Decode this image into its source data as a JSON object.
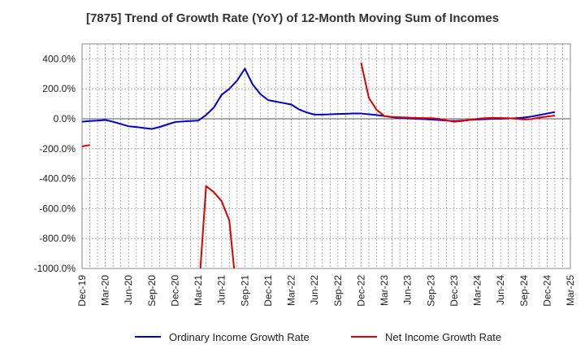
{
  "chart_data": {
    "type": "line",
    "title": "[7875]  Trend of Growth Rate (YoY) of 12-Month Moving Sum of Incomes",
    "xlabel": "",
    "ylabel": "",
    "ylim": [
      -1000,
      500
    ],
    "y_ticks": [
      400,
      200,
      0,
      -200,
      -400,
      -600,
      -800,
      -1000
    ],
    "y_tick_labels": [
      "400.0%",
      "200.0%",
      "0.0%",
      "-200.0%",
      "-400.0%",
      "-600.0%",
      "-800.0%",
      "-1000.0%"
    ],
    "x_tick_labels": [
      "Dec-19",
      "Mar-20",
      "Jun-20",
      "Sep-20",
      "Dec-20",
      "Mar-21",
      "Jun-21",
      "Sep-21",
      "Dec-21",
      "Mar-22",
      "Jun-22",
      "Sep-22",
      "Dec-22",
      "Mar-23",
      "Jun-23",
      "Sep-23",
      "Dec-23",
      "Mar-24",
      "Jun-24",
      "Sep-24",
      "Dec-24",
      "Mar-25"
    ],
    "x_months": [
      "Dec-19",
      "Jan-20",
      "Feb-20",
      "Mar-20",
      "Apr-20",
      "May-20",
      "Jun-20",
      "Jul-20",
      "Aug-20",
      "Sep-20",
      "Oct-20",
      "Nov-20",
      "Dec-20",
      "Jan-21",
      "Feb-21",
      "Mar-21",
      "Apr-21",
      "May-21",
      "Jun-21",
      "Jul-21",
      "Aug-21",
      "Sep-21",
      "Oct-21",
      "Nov-21",
      "Dec-21",
      "Jan-22",
      "Feb-22",
      "Mar-22",
      "Apr-22",
      "May-22",
      "Jun-22",
      "Jul-22",
      "Aug-22",
      "Sep-22",
      "Oct-22",
      "Nov-22",
      "Dec-22",
      "Jan-23",
      "Feb-23",
      "Mar-23",
      "Apr-23",
      "May-23",
      "Jun-23",
      "Jul-23",
      "Aug-23",
      "Sep-23",
      "Oct-23",
      "Nov-23",
      "Dec-23",
      "Jan-24",
      "Feb-24",
      "Mar-24",
      "Apr-24",
      "May-24",
      "Jun-24",
      "Jul-24",
      "Aug-24",
      "Sep-24",
      "Oct-24",
      "Nov-24",
      "Dec-24",
      "Jan-25",
      "Feb-25",
      "Mar-25"
    ],
    "grid": true,
    "legend_position": "bottom",
    "series": [
      {
        "name": "Ordinary Income Growth Rate",
        "color": "#0000cc",
        "values": [
          -20,
          -15,
          -12,
          -8,
          -20,
          -35,
          -50,
          -55,
          -62,
          -68,
          -55,
          -38,
          -22,
          -18,
          -15,
          -12,
          25,
          75,
          160,
          200,
          255,
          335,
          230,
          165,
          125,
          115,
          105,
          95,
          62,
          42,
          28,
          28,
          30,
          32,
          33,
          35,
          35,
          30,
          25,
          18,
          10,
          6,
          2,
          0,
          -2,
          -5,
          -8,
          -12,
          -15,
          -12,
          -8,
          -5,
          -3,
          -1,
          0,
          2,
          4,
          8,
          15,
          25,
          35,
          45,
          null,
          null
        ]
      },
      {
        "name": "Net Income Growth Rate",
        "color": "#dd0000",
        "values": [
          -185,
          -175,
          null,
          null,
          null,
          null,
          null,
          null,
          null,
          null,
          null,
          null,
          null,
          null,
          null,
          -1200,
          -450,
          -490,
          -550,
          -680,
          -1200,
          null,
          null,
          null,
          null,
          null,
          null,
          null,
          null,
          null,
          null,
          null,
          null,
          null,
          null,
          null,
          375,
          140,
          60,
          18,
          12,
          10,
          8,
          6,
          5,
          4,
          0,
          -10,
          -20,
          -15,
          -8,
          0,
          4,
          6,
          5,
          4,
          0,
          -5,
          -2,
          8,
          15,
          22,
          null,
          null
        ]
      }
    ]
  }
}
